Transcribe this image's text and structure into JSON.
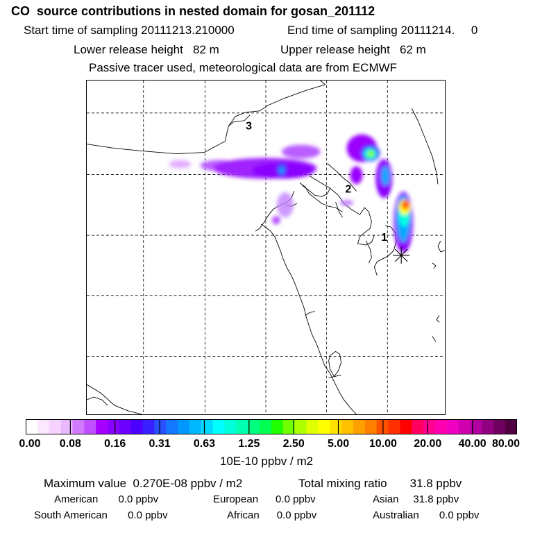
{
  "header": {
    "title": "CO  source contributions in nested domain for gosan_201112",
    "start_label": "Start time of sampling 20111213.210000",
    "end_label": "End time of sampling 20111214.     0",
    "lower_label": "Lower release height   82 m",
    "upper_label": "Upper release height   62 m",
    "tracer_line": "Passive tracer used, meteorological data are from ECMWF"
  },
  "map": {
    "markers": [
      "1",
      "2",
      "3"
    ],
    "plume_colors": [
      "#c080ff",
      "#9b00ff",
      "#6a00ff",
      "#3a3aff",
      "#00a8ff",
      "#00ffe0",
      "#80ff00",
      "#ffff00",
      "#ff8000",
      "#ff0000"
    ]
  },
  "colorbar": {
    "colors": [
      "#ffffff",
      "#fbe8ff",
      "#f6d3ff",
      "#eab8ff",
      "#d27aff",
      "#c050ff",
      "#a800ff",
      "#8a00ff",
      "#6c00ff",
      "#4b00ff",
      "#3a20ff",
      "#2850ff",
      "#1478ff",
      "#0098ff",
      "#00b8ff",
      "#00d8ff",
      "#00ffff",
      "#00ffd8",
      "#00ffb0",
      "#00ff80",
      "#00ff50",
      "#20ff00",
      "#70ff00",
      "#b0ff00",
      "#e0ff00",
      "#ffff00",
      "#ffe000",
      "#ffc000",
      "#ffa000",
      "#ff8000",
      "#ff5000",
      "#ff3000",
      "#ff0000",
      "#ff0060",
      "#ff0090",
      "#ff00b0",
      "#f000c0",
      "#d000b0",
      "#b000a0",
      "#900080",
      "#700060",
      "#500040"
    ],
    "ticks": [
      "0.00",
      "0.08",
      "0.16",
      "0.31",
      "0.63",
      "1.25",
      "2.50",
      "5.00",
      "10.00",
      "20.00",
      "40.00",
      "80.00"
    ],
    "unit": "10E-10 ppbv / m2"
  },
  "stats": {
    "max_label": "Maximum value  0.270E-08 ppbv / m2",
    "total_label": "Total mixing ratio       31.8 ppbv",
    "american": "American       0.0 ppbv",
    "european": "European      0.0 ppbv",
    "asian": "Asian     31.8 ppbv",
    "south_american": "South American       0.0 ppbv",
    "african": "African      0.0 ppbv",
    "australian": "Australian       0.0 ppbv"
  }
}
